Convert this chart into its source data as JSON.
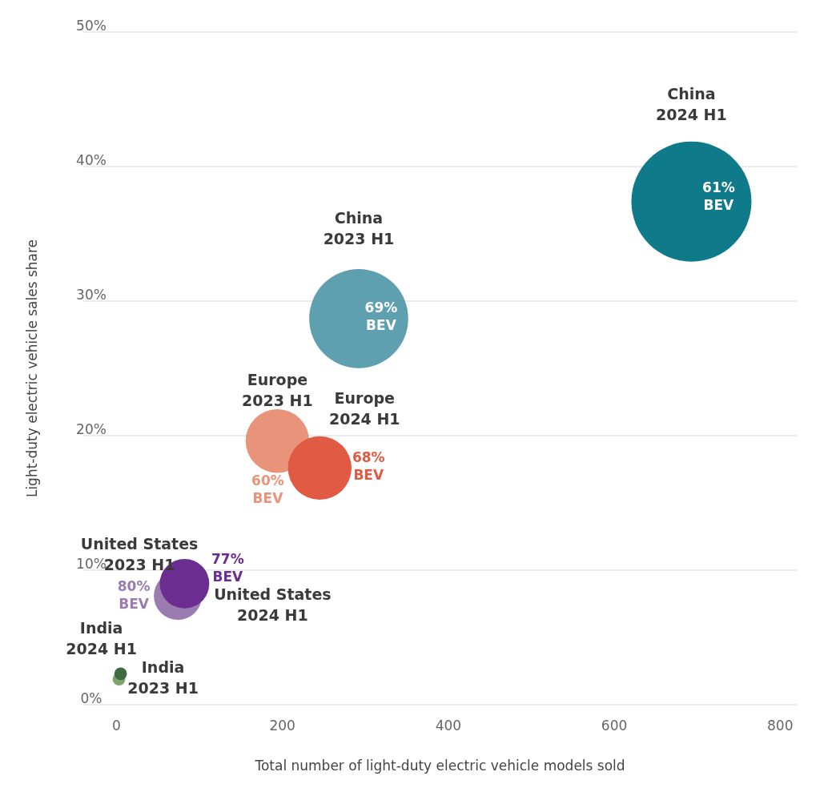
{
  "chart_data": {
    "type": "bubble",
    "xlabel": "Total number of light-duty electric vehicle models sold",
    "ylabel": "Light-duty electric vehicle sales share",
    "xlim": [
      -40,
      820
    ],
    "xticks": [
      0,
      200,
      400,
      600,
      800
    ],
    "ylim": [
      0,
      50
    ],
    "yticks": [
      {
        "value": 0,
        "label": "0%"
      },
      {
        "value": 10,
        "label": "10%"
      },
      {
        "value": 20,
        "label": "20%"
      },
      {
        "value": 30,
        "label": "30%"
      },
      {
        "value": 40,
        "label": "40%"
      },
      {
        "value": 50,
        "label": "50%"
      }
    ],
    "grid": "y",
    "series": [
      {
        "name": "China 2024 H1",
        "color": "#0f7a8a",
        "x": [
          693
        ],
        "values": [
          37.4
        ],
        "sizes": [
          1
        ]
      },
      {
        "name": "China 2023 H1",
        "color": "#5fa0b0",
        "x": [
          292
        ],
        "values": [
          28.7
        ],
        "sizes": [
          0.68
        ]
      },
      {
        "name": "Europe 2023 H1",
        "color": "#e8937a",
        "x": [
          194
        ],
        "values": [
          19.6
        ],
        "sizes": [
          0.28
        ]
      },
      {
        "name": "Europe 2024 H1",
        "color": "#e05a44",
        "x": [
          245
        ],
        "values": [
          17.6
        ],
        "sizes": [
          0.28
        ]
      },
      {
        "name": "United States 2023 H1",
        "color": "#9a7cb0",
        "x": [
          74
        ],
        "values": [
          8.1
        ],
        "sizes": [
          0.16
        ]
      },
      {
        "name": "United States 2024 H1",
        "color": "#6b2d8f",
        "x": [
          82
        ],
        "values": [
          9.0
        ],
        "sizes": [
          0.17
        ]
      },
      {
        "name": "India 2023 H1",
        "color": "#7fa36b",
        "x": [
          3
        ],
        "values": [
          1.9
        ],
        "sizes": [
          0.011
        ]
      },
      {
        "name": "India 2024 H1",
        "color": "#3e6b3e",
        "x": [
          5
        ],
        "values": [
          2.3
        ],
        "sizes": [
          0.011
        ]
      }
    ],
    "annotations": [
      {
        "text": "61% BEV",
        "x": 693,
        "y": 37.4
      },
      {
        "text": "69% BEV",
        "x": 292,
        "y": 28.7
      },
      {
        "text": "60% BEV",
        "x": 194,
        "y": 19.6
      },
      {
        "text": "68% BEV",
        "x": 245,
        "y": 17.6
      },
      {
        "text": "80% BEV",
        "x": 74,
        "y": 8.1
      },
      {
        "text": "77% BEV",
        "x": 82,
        "y": 9.0
      }
    ]
  }
}
